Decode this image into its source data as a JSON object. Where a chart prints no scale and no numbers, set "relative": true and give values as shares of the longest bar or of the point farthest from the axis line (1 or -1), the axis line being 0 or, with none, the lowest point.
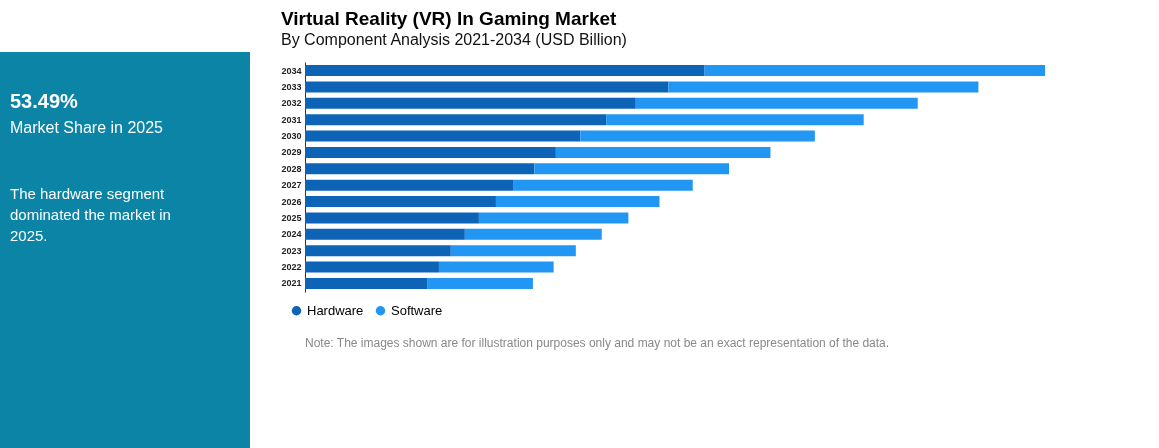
{
  "chart_data": {
    "type": "bar",
    "orientation": "horizontal",
    "stacked": true,
    "relative": true,
    "title": "Virtual Reality (VR) In Gaming Market",
    "subtitle": "By Component Analysis 2021-2034 (USD Billion)",
    "categories": [
      "2034",
      "2033",
      "2032",
      "2031",
      "2030",
      "2029",
      "2028",
      "2027",
      "2026",
      "2025",
      "2024",
      "2023",
      "2022",
      "2021"
    ],
    "series": [
      {
        "name": "Hardware",
        "color": "#0d63b5",
        "values": [
          0.54,
          0.491,
          0.447,
          0.407,
          0.372,
          0.339,
          0.31,
          0.282,
          0.258,
          0.235,
          0.216,
          0.197,
          0.181,
          0.165
        ]
      },
      {
        "name": "Software",
        "color": "#2196f3",
        "values": [
          0.46,
          0.419,
          0.381,
          0.348,
          0.317,
          0.29,
          0.263,
          0.242,
          0.221,
          0.202,
          0.185,
          0.169,
          0.155,
          0.143
        ]
      }
    ],
    "legend": "bottom",
    "annotations": [
      "53.49%",
      "Market Share in 2025",
      "The hardware segment dominated the market in 2025.",
      "Note: The images shown are for illustration purposes only and may not be an exact representation of the data."
    ]
  }
}
